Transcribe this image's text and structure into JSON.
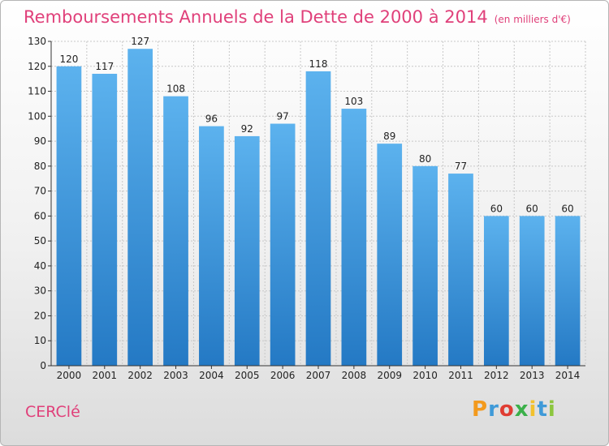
{
  "chart_data": {
    "type": "bar",
    "title": "Remboursements Annuels de la Dette de 2000 à 2014",
    "subtitle": "(en milliers d'€)",
    "categories": [
      "2000",
      "2001",
      "2002",
      "2003",
      "2004",
      "2005",
      "2006",
      "2007",
      "2008",
      "2009",
      "2010",
      "2011",
      "2012",
      "2013",
      "2014"
    ],
    "values": [
      120,
      117,
      127,
      108,
      96,
      92,
      97,
      118,
      103,
      89,
      80,
      77,
      60,
      60,
      60
    ],
    "ylim": [
      0,
      130
    ],
    "yticks": [
      0,
      10,
      20,
      30,
      40,
      50,
      60,
      70,
      80,
      90,
      100,
      110,
      120,
      130
    ],
    "grid": true,
    "legend": "none",
    "bar_color": "#3b97dd",
    "bar_color_light": "#5cb2ee",
    "bar_color_dark": "#2479c4"
  },
  "footer": {
    "commune": "CERClé",
    "brand": [
      "P",
      "r",
      "o",
      "x",
      "i",
      "t",
      "i"
    ],
    "brand_colors": [
      "#f39a1d",
      "#3f9ad8",
      "#e03d33",
      "#3bb04a",
      "#f2c12e",
      "#3f9ad8",
      "#8cc63f"
    ]
  },
  "colors": {
    "title": "#e0407a",
    "grid": "#c8c8c8",
    "axis": "#333333"
  }
}
